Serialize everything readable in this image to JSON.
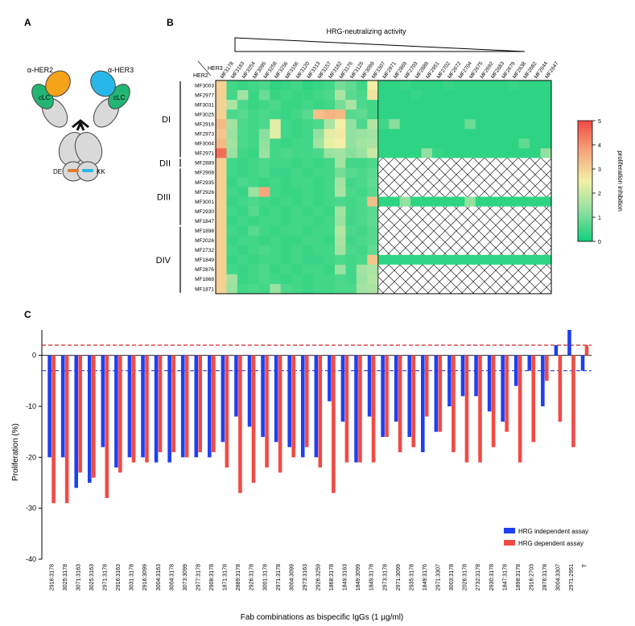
{
  "panels": {
    "a": "A",
    "b": "B",
    "c": "C"
  },
  "panel_a": {
    "arm_left": "α-HER2",
    "arm_right": "α-HER3",
    "clc_left": "cLC",
    "clc_right": "cLC",
    "mutation_left": "DE",
    "mutation_right": "KK",
    "colors": {
      "her2": "#f5a31a",
      "her3": "#29b6e8",
      "clc": "#22b573",
      "domain": "#d9d9d9"
    }
  },
  "heatmap": {
    "activity_label": "HRG-neutralizing activity",
    "her3_label": "HER3",
    "her2_label": "HER2",
    "her3_columns": [
      "MF3178",
      "MF3183",
      "MF3254",
      "MF3095",
      "MF3258",
      "MF3256",
      "MF3156",
      "MF3120",
      "MF3313",
      "MF3157",
      "MF3182",
      "MF3176",
      "MF3125",
      "MF3099",
      "MF3307",
      "MF2971",
      "MF2869",
      "MF2703",
      "MF2889",
      "MF2951",
      "MF2702",
      "MF2672",
      "MF2704",
      "MF2675",
      "MF2692",
      "MF2683",
      "MF2679",
      "MF2638",
      "MF2682",
      "MF2644",
      "MF2647"
    ],
    "her2_rows": [
      "MF3003",
      "MF2977",
      "MF3031",
      "MF3025",
      "MF2916",
      "MF2973",
      "MF3004",
      "MF2971",
      "MF2889",
      "MF2908",
      "MF2935",
      "MF2926",
      "MF3001",
      "MF2930",
      "MF1847",
      "MF1898",
      "MF2026",
      "MF2732",
      "MF1849",
      "MF2876",
      "MF1868",
      "MF1871"
    ],
    "groups": [
      {
        "label": "DI",
        "first": 0,
        "last": 7
      },
      {
        "label": "DII",
        "first": 8,
        "last": 8
      },
      {
        "label": "DIII",
        "first": 9,
        "last": 14
      },
      {
        "label": "DIV",
        "first": 15,
        "last": 21
      }
    ],
    "full_rows": [
      0,
      1,
      3,
      4,
      5,
      6,
      7,
      12,
      18
    ],
    "tested_columns": 15,
    "values": [
      [
        3.0,
        0.5,
        0.4,
        0.5,
        0.6,
        0.3,
        0.4,
        0.5,
        0.3,
        0.4,
        0.5,
        1.0,
        0.8,
        0.5,
        2.5,
        0.3,
        0.3,
        0.4,
        0.3,
        0.3,
        0.3,
        0.4,
        0.3,
        0.3,
        0.3,
        0.3,
        0.3,
        0.4,
        0.3,
        0.3,
        0.3
      ],
      [
        3.0,
        0.5,
        1.5,
        0.4,
        0.9,
        0.4,
        0.5,
        0.4,
        0.4,
        0.5,
        0.6,
        1.6,
        0.7,
        0.6,
        2.7,
        0.3,
        0.3,
        0.3,
        0.4,
        0.3,
        0.3,
        0.3,
        0.3,
        0.3,
        0.3,
        0.3,
        0.3,
        0.3,
        0.3,
        0.3,
        0.3
      ],
      [
        3.0,
        1.6,
        0.6,
        0.4,
        0.5,
        0.6,
        0.4,
        0.4,
        0.5,
        0.4,
        0.5,
        1.0,
        1.6,
        0.6,
        0.5,
        0.3,
        0.3,
        0.3,
        0.3,
        0.3,
        0.3,
        0.3,
        0.3,
        0.3,
        0.3,
        0.3,
        0.3,
        0.3,
        0.3,
        0.3,
        0.3
      ],
      [
        3.0,
        0.6,
        0.7,
        0.5,
        0.6,
        0.5,
        0.4,
        0.5,
        0.7,
        3.3,
        3.5,
        3.4,
        0.7,
        0.8,
        0.5,
        0.3,
        0.3,
        0.3,
        0.3,
        0.3,
        0.3,
        0.3,
        0.3,
        0.3,
        0.3,
        0.3,
        0.3,
        0.3,
        0.3,
        0.3,
        0.3
      ],
      [
        3.4,
        1.5,
        0.6,
        0.5,
        0.6,
        2.3,
        0.5,
        0.4,
        0.5,
        0.6,
        1.6,
        2.5,
        1.3,
        0.6,
        1.7,
        0.5,
        1.2,
        0.3,
        0.3,
        0.3,
        0.3,
        0.3,
        0.3,
        0.9,
        0.3,
        0.3,
        0.3,
        0.3,
        0.3,
        0.3,
        0.3
      ],
      [
        3.2,
        1.4,
        0.6,
        0.5,
        1.2,
        2.3,
        0.5,
        0.4,
        0.5,
        1.3,
        2.3,
        2.6,
        1.3,
        1.4,
        1.5,
        0.3,
        0.3,
        0.3,
        0.3,
        0.3,
        0.3,
        0.3,
        0.3,
        0.3,
        0.3,
        0.3,
        0.3,
        0.3,
        0.3,
        0.3,
        0.3
      ],
      [
        3.4,
        1.5,
        0.6,
        0.5,
        1.3,
        0.5,
        0.4,
        0.5,
        0.5,
        1.5,
        2.4,
        2.5,
        1.3,
        1.5,
        1.6,
        0.3,
        0.3,
        0.3,
        0.3,
        0.3,
        0.3,
        0.3,
        0.3,
        0.3,
        0.3,
        0.3,
        0.3,
        0.3,
        0.8,
        0.3,
        0.3
      ],
      [
        4.5,
        1.4,
        0.5,
        0.4,
        1.4,
        0.5,
        0.6,
        0.5,
        0.5,
        0.6,
        1.4,
        1.5,
        1.2,
        1.4,
        2.0,
        0.3,
        0.3,
        0.3,
        0.3,
        1.3,
        0.4,
        0.3,
        0.3,
        0.3,
        0.3,
        0.3,
        0.3,
        0.3,
        0.3,
        0.3,
        1.3
      ],
      [
        3.0,
        0.5,
        0.4,
        0.5,
        0.6,
        0.5,
        0.5,
        0.4,
        0.5,
        0.4,
        0.5,
        1.5,
        0.5,
        0.5,
        0.6
      ],
      [
        3.0,
        0.5,
        0.4,
        0.5,
        0.6,
        0.4,
        0.4,
        0.5,
        0.4,
        0.5,
        0.5,
        1.0,
        0.7,
        0.6,
        0.7
      ],
      [
        3.0,
        0.4,
        0.6,
        0.5,
        0.4,
        0.5,
        0.4,
        0.5,
        0.5,
        0.4,
        0.5,
        1.5,
        0.5,
        0.6,
        0.8
      ],
      [
        3.0,
        0.5,
        0.4,
        1.4,
        3.7,
        0.5,
        0.4,
        0.4,
        0.5,
        0.4,
        0.5,
        1.6,
        0.6,
        0.5,
        0.7
      ],
      [
        3.0,
        0.4,
        0.5,
        0.6,
        0.5,
        0.4,
        0.5,
        0.4,
        0.5,
        0.4,
        0.5,
        0.6,
        0.5,
        0.6,
        3.3,
        0.3,
        0.3,
        1.3,
        0.3,
        0.3,
        0.3,
        0.3,
        0.3,
        1.3,
        0.3,
        0.3,
        0.3,
        0.3,
        0.3,
        0.3,
        0.3
      ],
      [
        3.0,
        0.5,
        0.4,
        0.7,
        0.4,
        0.5,
        0.4,
        0.5,
        0.4,
        0.5,
        0.4,
        1.5,
        0.5,
        0.6,
        0.7
      ],
      [
        3.0,
        0.4,
        0.5,
        0.4,
        0.5,
        0.5,
        0.4,
        0.5,
        0.5,
        0.4,
        0.5,
        1.4,
        0.5,
        0.6,
        0.8
      ],
      [
        3.0,
        0.5,
        0.4,
        0.7,
        0.5,
        0.4,
        0.5,
        0.5,
        0.4,
        0.5,
        0.5,
        1.7,
        0.6,
        0.5,
        0.7
      ],
      [
        3.0,
        0.4,
        0.5,
        0.5,
        0.4,
        0.5,
        0.4,
        0.4,
        0.5,
        0.5,
        0.4,
        1.6,
        0.5,
        0.6,
        0.7
      ],
      [
        3.0,
        0.5,
        0.4,
        0.5,
        0.6,
        0.5,
        0.4,
        0.5,
        0.4,
        0.5,
        0.5,
        1.5,
        0.6,
        0.5,
        0.8
      ],
      [
        3.0,
        0.4,
        0.5,
        0.4,
        0.5,
        0.5,
        0.4,
        0.5,
        0.4,
        0.4,
        0.5,
        0.6,
        0.5,
        0.6,
        3.2,
        0.3,
        0.3,
        0.3,
        0.3,
        0.3,
        0.3,
        0.3,
        0.3,
        0.3,
        0.3,
        0.3,
        0.3,
        0.3,
        0.3,
        0.3,
        0.3
      ],
      [
        3.0,
        0.5,
        0.4,
        0.5,
        0.6,
        0.4,
        0.5,
        0.4,
        0.5,
        0.5,
        0.4,
        1.4,
        0.5,
        1.5,
        1.6
      ],
      [
        3.0,
        1.5,
        0.4,
        0.5,
        0.6,
        0.5,
        0.4,
        0.5,
        0.4,
        0.5,
        0.5,
        0.6,
        0.5,
        1.4,
        1.7
      ],
      [
        3.0,
        1.4,
        0.5,
        0.6,
        0.5,
        1.4,
        0.6,
        0.5,
        0.4,
        0.5,
        0.5,
        0.6,
        0.6,
        1.5,
        1.6
      ]
    ]
  },
  "colorbar": {
    "label": "proliferation inhibition",
    "ticks": [
      "5",
      "4",
      "3",
      "2",
      "1",
      "0"
    ],
    "min": 0,
    "max": 5,
    "colors": [
      "#10d07a",
      "#8ee0a0",
      "#f2f0a6",
      "#f5a57a",
      "#f24a45"
    ]
  },
  "chart_data": {
    "type": "bar",
    "title": "",
    "xlabel": "Fab combinations as bispecific IgGs (1 µg/ml)",
    "ylabel": "Proliferation (%)",
    "ylim": [
      -40,
      5
    ],
    "yticks": [
      0,
      -10,
      -20,
      -30,
      -40
    ],
    "legend_placement": "bottom-right",
    "categories": [
      "2916:3178",
      "3025:3178",
      "3071:3163",
      "3025:3163",
      "2971:3178",
      "2916:3163",
      "3031:3178",
      "2916:3099",
      "3004:3163",
      "3004:3178",
      "3073:3099",
      "2977:3178",
      "2908:3178",
      "1871:3178",
      "2889:3178",
      "2926:3178",
      "3001:3178",
      "2971:3178",
      "3004:3099",
      "2973:3163",
      "2926:3259",
      "1868:3178",
      "1849:3163",
      "1849:3099",
      "1849:3178",
      "2973:3178",
      "2971:3099",
      "2935:3178",
      "1849:3176",
      "2971:3307",
      "3003:3178",
      "2026:3178",
      "2732:3178",
      "2930:3178",
      "1847:3178",
      "1898:3178",
      "2916:2703",
      "2876:3178",
      "3004:3307",
      "2971:2951",
      "T"
    ],
    "series": [
      {
        "name": "HRG independent assay",
        "color": "#1f3ff0",
        "values": [
          -20,
          -20,
          -26,
          -25,
          -18,
          -22,
          -20,
          -20,
          -21,
          -21,
          -20,
          -20,
          -20,
          -17,
          -12,
          -14,
          -16,
          -17,
          -18,
          -20,
          -20,
          -9,
          -13,
          -21,
          -12,
          -16,
          -13,
          -16,
          -19,
          -15,
          -10,
          -8,
          -8,
          -11,
          -13,
          -6,
          -3,
          -10,
          2,
          5,
          -3
        ]
      },
      {
        "name": "HRG dependent assay",
        "color": "#f24a45",
        "values": [
          -29,
          -29,
          -23,
          -24,
          -28,
          -23,
          -21,
          -21,
          -19,
          -19,
          -20,
          -19,
          -19,
          -22,
          -27,
          -25,
          -22,
          -23,
          -20,
          -18,
          -22,
          -27,
          -21,
          -21,
          -21,
          -16,
          -19,
          -18,
          -12,
          -15,
          -19,
          -21,
          -21,
          -18,
          -15,
          -21,
          -17,
          -5,
          -13,
          -18,
          2
        ]
      }
    ],
    "reference_lines": [
      {
        "value": 2,
        "color": "#d0202a"
      },
      {
        "value": -3,
        "color": "#1f3fd0"
      }
    ]
  }
}
